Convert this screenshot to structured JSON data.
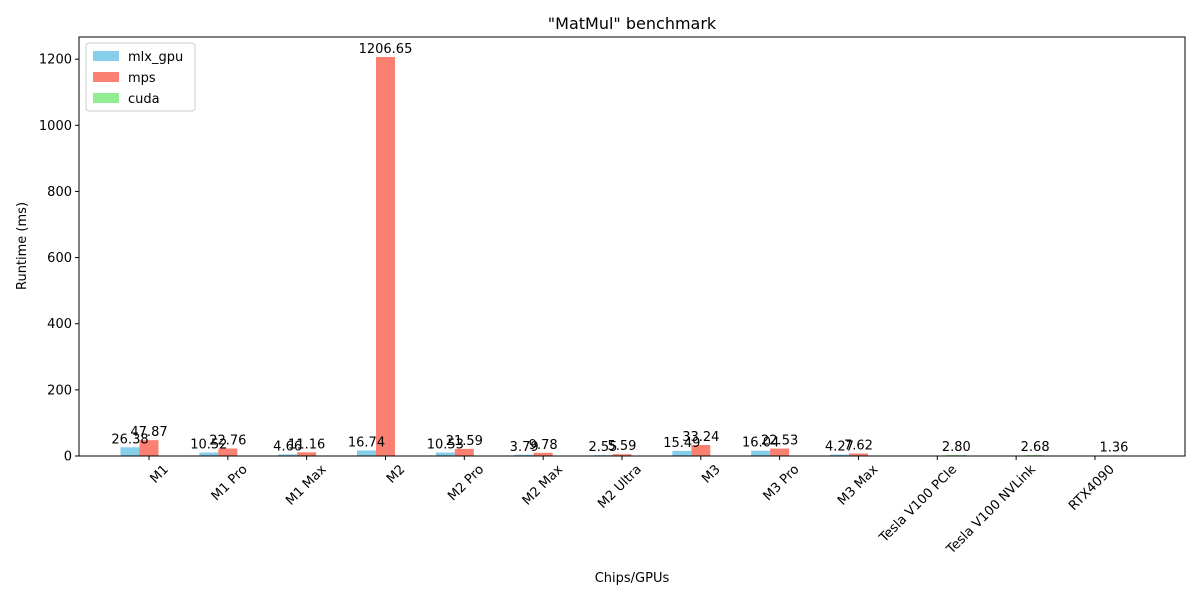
{
  "chart_data": {
    "type": "bar",
    "title": "\"MatMul\" benchmark",
    "xlabel": "Chips/GPUs",
    "ylabel": "Runtime (ms)",
    "categories": [
      "M1",
      "M1 Pro",
      "M1 Max",
      "M2",
      "M2 Pro",
      "M2 Max",
      "M2 Ultra",
      "M3",
      "M3 Pro",
      "M3 Max",
      "Tesla V100 PCIe",
      "Tesla V100 NVLink",
      "RTX4090"
    ],
    "series": [
      {
        "name": "mlx_gpu",
        "color": "#87CEEB",
        "values": [
          26.38,
          10.52,
          4.66,
          16.74,
          10.53,
          3.79,
          2.55,
          15.49,
          16.04,
          4.27,
          null,
          null,
          null
        ],
        "labels": [
          "26.38",
          "10.52",
          "4.66",
          "16.74",
          "10.53",
          "3.79",
          "2.55",
          "15.49",
          "16.04",
          "4.27",
          null,
          null,
          null
        ]
      },
      {
        "name": "mps",
        "color": "#FA8072",
        "values": [
          47.87,
          22.76,
          11.16,
          1206.65,
          21.59,
          9.78,
          5.59,
          33.24,
          22.53,
          7.62,
          null,
          null,
          null
        ],
        "labels": [
          "47.87",
          "22.76",
          "11.16",
          "1206.65",
          "21.59",
          "9.78",
          "5.59",
          "33.24",
          "22.53",
          "7.62",
          null,
          null,
          null
        ]
      },
      {
        "name": "cuda",
        "color": "#90EE90",
        "values": [
          null,
          null,
          null,
          null,
          null,
          null,
          null,
          null,
          null,
          null,
          2.8,
          2.68,
          1.36
        ],
        "labels": [
          null,
          null,
          null,
          null,
          null,
          null,
          null,
          null,
          null,
          null,
          "2.80",
          "2.68",
          "1.36"
        ]
      }
    ],
    "ylim": [
      0,
      1267
    ],
    "yticks": [
      0,
      200,
      400,
      600,
      800,
      1000,
      1200
    ],
    "grid": false,
    "legend": "upper-left"
  }
}
